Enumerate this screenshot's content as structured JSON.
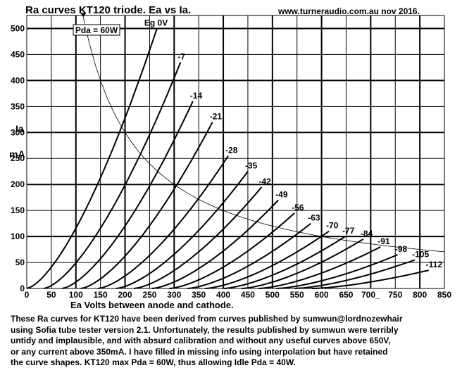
{
  "header": {
    "title": "Ra curves KT120 triode. Ea vs Ia.",
    "site": "www.turneraudio.com.au  nov 2016."
  },
  "chart_data": {
    "type": "line",
    "title": "Ra curves KT120 triode. Ea vs Ia.",
    "xlabel": "Ea Volts between anode and cathode.",
    "ylabel_top": "Ia",
    "ylabel_bottom": "mA",
    "xlim": [
      0,
      850
    ],
    "ylim": [
      0,
      525
    ],
    "xticks": [
      0,
      50,
      100,
      150,
      200,
      250,
      300,
      350,
      400,
      450,
      500,
      550,
      600,
      650,
      700,
      750,
      800,
      850
    ],
    "yticks": [
      0,
      50,
      100,
      150,
      200,
      250,
      300,
      350,
      400,
      450,
      500
    ],
    "xtick_labels": [
      "0",
      "50",
      "100",
      "150",
      "200",
      "250",
      "300",
      "350",
      "400",
      "450",
      "500",
      "550",
      "600",
      "650",
      "700_",
      "750",
      "800",
      "850"
    ],
    "grid": true,
    "series": [
      {
        "name": "Eg 0V",
        "x0": 0,
        "x_end": 265,
        "y_end": 500
      },
      {
        "name": "-7",
        "x0": 35,
        "x_end": 313,
        "y_end": 435
      },
      {
        "name": "-14",
        "x0": 72,
        "x_end": 338,
        "y_end": 360
      },
      {
        "name": "-21",
        "x0": 110,
        "x_end": 378,
        "y_end": 320
      },
      {
        "name": "-28",
        "x0": 145,
        "x_end": 410,
        "y_end": 255
      },
      {
        "name": "-35",
        "x0": 182,
        "x_end": 450,
        "y_end": 225
      },
      {
        "name": "-42",
        "x0": 218,
        "x_end": 478,
        "y_end": 195
      },
      {
        "name": "-49",
        "x0": 255,
        "x_end": 512,
        "y_end": 170
      },
      {
        "name": "-56",
        "x0": 290,
        "x_end": 545,
        "y_end": 145
      },
      {
        "name": "-63",
        "x0": 327,
        "x_end": 578,
        "y_end": 125
      },
      {
        "name": "-70",
        "x0": 363,
        "x_end": 615,
        "y_end": 110
      },
      {
        "name": "-77",
        "x0": 400,
        "x_end": 648,
        "y_end": 100
      },
      {
        "name": "-84",
        "x0": 437,
        "x_end": 685,
        "y_end": 95
      },
      {
        "name": "-91",
        "x0": 472,
        "x_end": 720,
        "y_end": 80
      },
      {
        "name": "-98",
        "x0": 508,
        "x_end": 755,
        "y_end": 65
      },
      {
        "name": "-105",
        "x0": 545,
        "x_end": 790,
        "y_end": 55
      },
      {
        "name": "-112",
        "x0": 580,
        "x_end": 818,
        "y_end": 35
      }
    ],
    "pda_curve": {
      "label": "Pda = 60W",
      "watts": 60,
      "x_start": 115,
      "x_end": 850
    },
    "annotations": [
      "Pda = 60W"
    ]
  },
  "notes": [
    "These Ra curves for KT120 have been derived from curves published  by sumwun@lordnozewhair",
    "using Sofia tube tester version 2.1. Unfortunately, the results published  by sumwun were  terribly",
    "untidy and implausible, and with absurd calibration and without any useful curves above 650V,",
    "or any current above 350mA.  I have filled in missing info using interpolation but have retained",
    "the curve shapes. KT120 max Pda = 60W, thus allowing Idle Pda = 40W."
  ]
}
